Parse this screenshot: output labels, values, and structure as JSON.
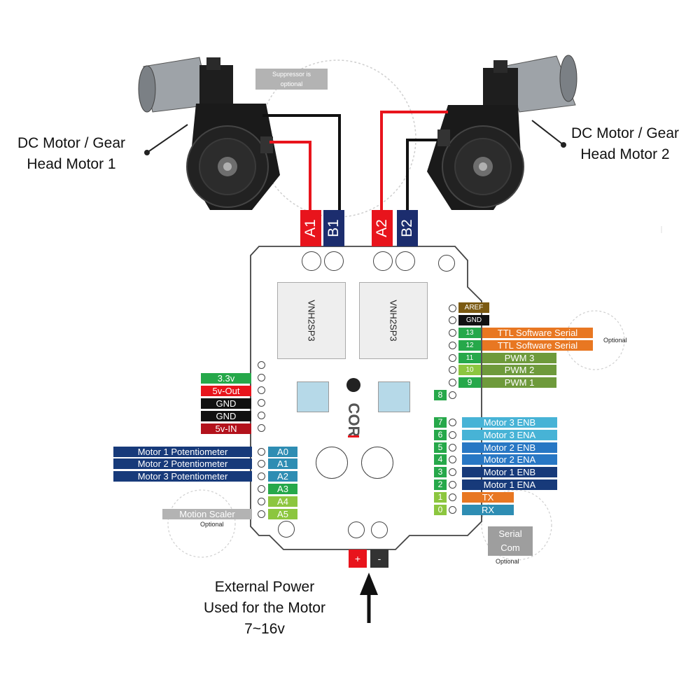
{
  "motors": {
    "motor1_label_line1": "DC Motor / Gear",
    "motor1_label_line2": "Head Motor 1",
    "motor2_label_line1": "DC Motor / Gear",
    "motor2_label_line2": "Head Motor 2",
    "suppressor_line1": "Suppressor is",
    "suppressor_line2": "optional"
  },
  "terminals": [
    {
      "label": "A1",
      "color": "#e8141c"
    },
    {
      "label": "B1",
      "color": "#1c2d6e"
    },
    {
      "label": "A2",
      "color": "#e8141c"
    },
    {
      "label": "B2",
      "color": "#1c2d6e"
    }
  ],
  "board": {
    "chip1": "VNH2SP3",
    "chip2": "VNH2SP3",
    "logo": "COR",
    "power_plus": "+",
    "power_minus": "-"
  },
  "right_header": [
    {
      "num": "",
      "label": "AREF",
      "color": "#7b5a12"
    },
    {
      "num": "",
      "label": "GND",
      "color": "#111111"
    },
    {
      "num": "13",
      "label": "TTL Software Serial",
      "color": "#e87722"
    },
    {
      "num": "12",
      "label": "TTL Software Serial",
      "color": "#e87722"
    },
    {
      "num": "11",
      "label": "PWM 3",
      "color": "#6e9a3b"
    },
    {
      "num": "10",
      "label": "PWM 2",
      "color": "#6e9a3b"
    },
    {
      "num": "9",
      "label": "PWM 1",
      "color": "#6e9a3b"
    }
  ],
  "right_header_optional": "Optional",
  "pin8": "8",
  "right_digital": [
    {
      "num": "7",
      "label": "Motor 3 ENB",
      "color": "#47b3d6"
    },
    {
      "num": "6",
      "label": "Motor 3 ENA",
      "color": "#47b3d6"
    },
    {
      "num": "5",
      "label": "Motor 2 ENB",
      "color": "#2877c4"
    },
    {
      "num": "4",
      "label": "Motor 2 ENA",
      "color": "#2877c4"
    },
    {
      "num": "3",
      "label": "Motor 1 ENB",
      "color": "#173a7a"
    },
    {
      "num": "2",
      "label": "Motor 1 ENA",
      "color": "#173a7a"
    },
    {
      "num": "1",
      "label": "TX",
      "color": "#e87722"
    },
    {
      "num": "0",
      "label": "RX",
      "color": "#2e8db3"
    }
  ],
  "serial_com": {
    "line1": "Serial",
    "line2": "Com",
    "optional": "Optional"
  },
  "left_power": [
    {
      "label": "3.3v",
      "color": "#26a84a"
    },
    {
      "label": "5v-Out",
      "color": "#e8141c"
    },
    {
      "label": "GND",
      "color": "#111111"
    },
    {
      "label": "GND",
      "color": "#111111"
    },
    {
      "label": "5v-IN",
      "color": "#b3121c"
    }
  ],
  "left_analog": [
    {
      "pin": "A0",
      "label": "Motor 1 Potentiometer",
      "pin_color": "#2e8db3",
      "label_color": "#173a7a"
    },
    {
      "pin": "A1",
      "label": "Motor 2 Potentiometer",
      "pin_color": "#2e8db3",
      "label_color": "#173a7a"
    },
    {
      "pin": "A2",
      "label": "Motor 3 Potentiometer",
      "pin_color": "#2e8db3",
      "label_color": "#173a7a"
    },
    {
      "pin": "A3",
      "label": "",
      "pin_color": "#26a84a",
      "label_color": ""
    },
    {
      "pin": "A4",
      "label": "",
      "pin_color": "#8cc63f",
      "label_color": ""
    },
    {
      "pin": "A5",
      "label": "Motion Scaler",
      "pin_color": "#8cc63f",
      "label_color": "#b3b3b3"
    }
  ],
  "motion_scaler_optional": "Optional",
  "external_power": {
    "line1": "External Power",
    "line2": "Used for the Motor",
    "line3": "7~16v"
  }
}
